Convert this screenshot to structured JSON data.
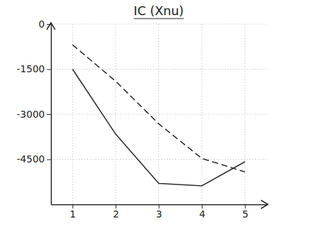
{
  "chart_data": {
    "type": "line",
    "title": "IC (Xnu)",
    "x": [
      1,
      2,
      3,
      4,
      5
    ],
    "series": [
      {
        "color": "#2b2b2b",
        "line_style": "solid",
        "values": [
          -1500,
          -3660,
          -5300,
          -5380,
          -4580
        ]
      },
      {
        "color": "#2b2b2b",
        "line_style": "dashed",
        "values": [
          -690,
          -1900,
          -3320,
          -4470,
          -4920
        ]
      }
    ],
    "xlim": [
      0.5,
      5.5
    ],
    "xticks": [
      1,
      2,
      3,
      4,
      5
    ],
    "ylim": [
      -6000,
      0
    ],
    "yticks": [
      0,
      -1500,
      -3000,
      -4500
    ],
    "grid": true
  }
}
